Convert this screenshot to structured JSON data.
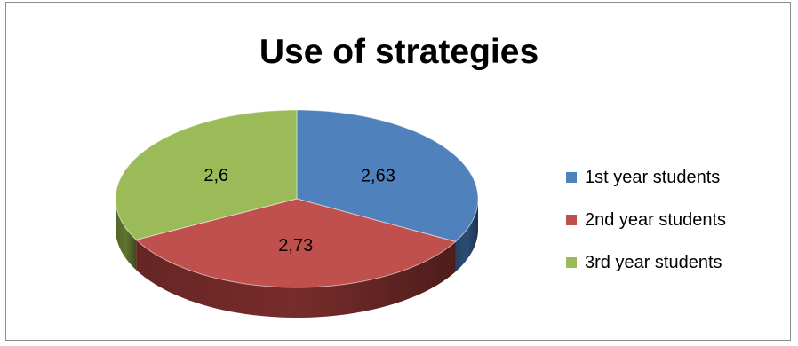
{
  "chart_data": {
    "type": "pie",
    "title": "Use of strategies",
    "categories": [
      "1st year students",
      "2nd year students",
      "3rd year students"
    ],
    "values": [
      2.63,
      2.73,
      2.6
    ],
    "data_labels": [
      "2,63",
      "2,73",
      "2,6"
    ],
    "colors": [
      "#4f81bd",
      "#c0504d",
      "#9bbb59"
    ],
    "side_colors": [
      "#2c4d75",
      "#772c2a",
      "#5f7530"
    ],
    "legend_position": "right",
    "style": "3d-pie"
  }
}
